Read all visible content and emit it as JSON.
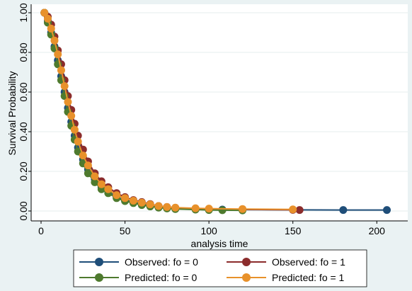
{
  "chart_data": {
    "type": "line",
    "xlabel": "analysis time",
    "ylabel": "Survival Probability",
    "xlim": [
      0,
      210
    ],
    "ylim": [
      0,
      1
    ],
    "x_ticks": [
      0,
      50,
      100,
      150,
      200
    ],
    "x_tick_labels": [
      "0",
      "50",
      "100",
      "150",
      "200"
    ],
    "y_ticks": [
      0,
      0.2,
      0.4,
      0.6,
      0.8,
      1.0
    ],
    "y_tick_labels": [
      "0.00",
      "0.20",
      "0.40",
      "0.60",
      "0.80",
      "1.00"
    ],
    "grid": "horizontal",
    "legend_position": "bottom",
    "series": [
      {
        "name": "Observed: fo = 0",
        "color": "#1f4e79",
        "x": [
          2,
          4,
          6,
          8,
          10,
          12,
          14,
          16,
          18,
          20,
          22,
          25,
          28,
          32,
          36,
          40,
          45,
          50,
          55,
          60,
          65,
          70,
          75,
          80,
          92,
          100,
          108,
          180,
          206
        ],
        "y": [
          1.0,
          0.96,
          0.9,
          0.83,
          0.76,
          0.68,
          0.6,
          0.52,
          0.45,
          0.38,
          0.32,
          0.26,
          0.21,
          0.16,
          0.12,
          0.1,
          0.07,
          0.055,
          0.045,
          0.035,
          0.027,
          0.02,
          0.015,
          0.012,
          0.01,
          0.008,
          0.007,
          0.005,
          0.005
        ]
      },
      {
        "name": "Observed: fo = 1",
        "color": "#8b2c2c",
        "x": [
          2,
          4,
          6,
          8,
          10,
          12,
          14,
          16,
          18,
          20,
          22,
          25,
          28,
          32,
          36,
          40,
          45,
          50,
          55,
          60,
          65,
          70,
          75,
          80,
          92,
          100,
          120,
          150,
          154
        ],
        "y": [
          1.0,
          0.98,
          0.94,
          0.88,
          0.81,
          0.74,
          0.66,
          0.58,
          0.51,
          0.44,
          0.38,
          0.31,
          0.25,
          0.19,
          0.15,
          0.12,
          0.09,
          0.07,
          0.055,
          0.045,
          0.035,
          0.025,
          0.02,
          0.016,
          0.012,
          0.01,
          0.008,
          0.006,
          0.005
        ]
      },
      {
        "name": "Predicted: fo = 0",
        "color": "#4e7a2e",
        "x": [
          2,
          4,
          6,
          8,
          10,
          12,
          14,
          16,
          18,
          20,
          22,
          25,
          28,
          32,
          36,
          40,
          45,
          50,
          55,
          60,
          65,
          70,
          75,
          80,
          92,
          100,
          108,
          120
        ],
        "y": [
          1.0,
          0.95,
          0.89,
          0.82,
          0.74,
          0.66,
          0.58,
          0.5,
          0.43,
          0.36,
          0.3,
          0.24,
          0.19,
          0.145,
          0.11,
          0.09,
          0.065,
          0.05,
          0.04,
          0.03,
          0.023,
          0.017,
          0.013,
          0.01,
          0.007,
          0.005,
          0.004,
          0.003
        ]
      },
      {
        "name": "Predicted: fo = 1",
        "color": "#e8912b",
        "x": [
          2,
          4,
          6,
          8,
          10,
          12,
          14,
          16,
          18,
          20,
          22,
          25,
          28,
          32,
          36,
          40,
          45,
          50,
          55,
          60,
          65,
          70,
          75,
          80,
          92,
          100,
          120,
          150
        ],
        "y": [
          1.0,
          0.97,
          0.92,
          0.86,
          0.79,
          0.71,
          0.63,
          0.55,
          0.48,
          0.41,
          0.35,
          0.28,
          0.23,
          0.175,
          0.135,
          0.11,
          0.08,
          0.065,
          0.052,
          0.042,
          0.033,
          0.025,
          0.02,
          0.017,
          0.014,
          0.012,
          0.01,
          0.008
        ]
      }
    ]
  }
}
